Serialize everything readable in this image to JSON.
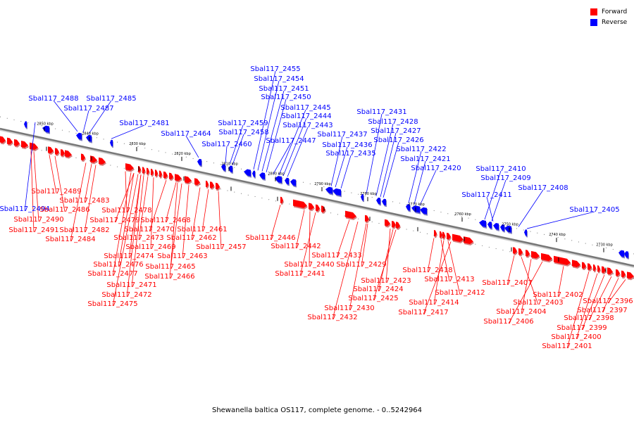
{
  "caption": "Shewanella baltica OS117, complete genome. - 0..5242964",
  "legend": {
    "forward": {
      "label": "Forward",
      "color": "#ff0000"
    },
    "reverse": {
      "label": "Reverse",
      "color": "#0000ff"
    }
  },
  "axis": {
    "ticks": [
      "2850 kbp",
      "2840 kbp",
      "2830 kbp",
      "2820 kbp",
      "2810 kbp",
      "2800 kbp",
      "2790 kbp",
      "2780 kbp",
      "2770 kbp",
      "2760 kbp",
      "2750 kbp",
      "2740 kbp",
      "2730 kbp"
    ]
  },
  "genes_reverse": [
    "Sbal117_2455",
    "Sbal117_2454",
    "Sbal117_2451",
    "Sbal117_2450",
    "Sbal117_2445",
    "Sbal117_2444",
    "Sbal117_2443",
    "Sbal117_2447",
    "Sbal117_2488",
    "Sbal117_2485",
    "Sbal117_2487",
    "Sbal117_2481",
    "Sbal117_2459",
    "Sbal117_2458",
    "Sbal117_2464",
    "Sbal117_2460",
    "Sbal117_2431",
    "Sbal117_2428",
    "Sbal117_2427",
    "Sbal117_2426",
    "Sbal117_2437",
    "Sbal117_2436",
    "Sbal117_2435",
    "Sbal117_2422",
    "Sbal117_2421",
    "Sbal117_2420",
    "Sbal117_2410",
    "Sbal117_2409",
    "Sbal117_2411",
    "Sbal117_2408",
    "Sbal117_2405",
    "Sbal117_2494"
  ],
  "genes_forward": [
    "Sbal117_2489",
    "Sbal117_2483",
    "Sbal117_2486",
    "Sbal117_2490",
    "Sbal117_2482",
    "Sbal117_2491",
    "Sbal117_2484",
    "Sbal117_2478",
    "Sbal117_2479",
    "Sbal117_2468",
    "Sbal117_2470",
    "Sbal117_2461",
    "Sbal117_2473",
    "Sbal117_2462",
    "Sbal117_2469",
    "Sbal117_2457",
    "Sbal117_2474",
    "Sbal117_2463",
    "Sbal117_2476",
    "Sbal117_2465",
    "Sbal117_2477",
    "Sbal117_2466",
    "Sbal117_2471",
    "Sbal117_2472",
    "Sbal117_2475",
    "Sbal117_2446",
    "Sbal117_2442",
    "Sbal117_2440",
    "Sbal117_2441",
    "Sbal117_2433",
    "Sbal117_2429",
    "Sbal117_2423",
    "Sbal117_2424",
    "Sbal117_2425",
    "Sbal117_2430",
    "Sbal117_2432",
    "Sbal117_2418",
    "Sbal117_2413",
    "Sbal117_2412",
    "Sbal117_2414",
    "Sbal117_2417",
    "Sbal117_2407",
    "Sbal117_2403",
    "Sbal117_2404",
    "Sbal117_2406",
    "Sbal117_2402",
    "Sbal117_2396",
    "Sbal117_2397",
    "Sbal117_2398",
    "Sbal117_2399",
    "Sbal117_2400",
    "Sbal117_2401"
  ]
}
